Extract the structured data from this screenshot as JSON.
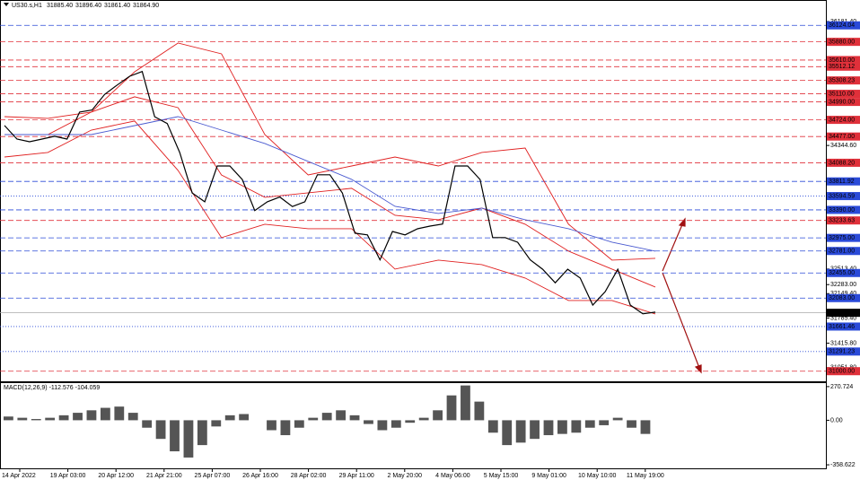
{
  "chart_data": [
    {
      "type": "line",
      "symbol": "US30.s,H1",
      "ohlc": [
        "31885.40",
        "31896.40",
        "31861.40",
        "31864.90"
      ],
      "ylim": [
        30850,
        36500
      ],
      "yticks": [
        {
          "value": 36181.4,
          "label": "36181.40"
        },
        {
          "value": 34344.6,
          "label": "34344.60"
        },
        {
          "value": 32513.4,
          "label": "32513.40"
        },
        {
          "value": 32283,
          "label": "32283.00"
        },
        {
          "value": 32149.4,
          "label": "32149.40"
        },
        {
          "value": 31785.4,
          "label": "31785.40"
        },
        {
          "value": 31415.8,
          "label": "31415.80"
        },
        {
          "value": 31051.8,
          "label": "31051.80"
        }
      ],
      "levels": [
        {
          "value": 36124.04,
          "label": "36124.04",
          "color": "#2a4ad8",
          "style": "dashed"
        },
        {
          "value": 35880,
          "label": "35880.00",
          "color": "#e0303a",
          "style": "dashed"
        },
        {
          "value": 35610,
          "label": "35610.00",
          "color": "#e0303a",
          "style": "dashed"
        },
        {
          "value": 35512.12,
          "label": "35512.12",
          "color": "#e0303a",
          "style": "dashed"
        },
        {
          "value": 35308.23,
          "label": "35308.23",
          "color": "#e0303a",
          "style": "dashed"
        },
        {
          "value": 35110,
          "label": "35110.00",
          "color": "#e0303a",
          "style": "dashed"
        },
        {
          "value": 34990,
          "label": "34990.00",
          "color": "#e0303a",
          "style": "dashed"
        },
        {
          "value": 34724,
          "label": "34724.00",
          "color": "#e0303a",
          "style": "dashed"
        },
        {
          "value": 34477,
          "label": "34477.00",
          "color": "#e0303a",
          "style": "dashed"
        },
        {
          "value": 34088.2,
          "label": "34088.20",
          "color": "#e0303a",
          "style": "dashed"
        },
        {
          "value": 33811.92,
          "label": "33811.92",
          "color": "#2a4ad8",
          "style": "dashed"
        },
        {
          "value": 33594.59,
          "label": "33594.59",
          "color": "#2a4ad8",
          "style": "dotted"
        },
        {
          "value": 33390,
          "label": "33390.00",
          "color": "#2a4ad8",
          "style": "dashed"
        },
        {
          "value": 33233.63,
          "label": "33233.63",
          "color": "#e0303a",
          "style": "dashed"
        },
        {
          "value": 32975,
          "label": "32975.00",
          "color": "#2a4ad8",
          "style": "dashed"
        },
        {
          "value": 32781,
          "label": "32781.00",
          "color": "#2a4ad8",
          "style": "dashed"
        },
        {
          "value": 32455,
          "label": "32455.00",
          "color": "#2a4ad8",
          "style": "dashed"
        },
        {
          "value": 32083,
          "label": "32083.00",
          "color": "#2a4ad8",
          "style": "dashed"
        },
        {
          "value": 31864.9,
          "label": "31864.90",
          "color": "#000000",
          "style": "solid"
        },
        {
          "value": 31661.46,
          "label": "31661.46",
          "color": "#2a4ad8",
          "style": "dotted"
        },
        {
          "value": 31291.23,
          "label": "31291.23",
          "color": "#2a4ad8",
          "style": "dotted"
        },
        {
          "value": 31000,
          "label": "31000.00",
          "color": "#e0303a",
          "style": "dashed"
        }
      ],
      "xticks": [
        "14 Apr 2022",
        "19 Apr 03:00",
        "20 Apr 12:00",
        "21 Apr 21:00",
        "25 Apr 07:00",
        "26 Apr 16:00",
        "28 Apr 02:00",
        "29 Apr 11:00",
        "2 May 20:00",
        "4 May 06:00",
        "5 May 15:00",
        "9 May 01:00",
        "10 May 10:00",
        "11 May 19:00"
      ],
      "series": [
        {
          "color": "#e02020",
          "values": [
            34772,
            34746,
            34839,
            35437,
            35862,
            35703,
            34506,
            33908,
            34041,
            34174,
            34041,
            34241,
            34307,
            33178,
            32646,
            32673
          ]
        },
        {
          "color": "#e02020",
          "values": [
            34506,
            34506,
            34839,
            35065,
            34905,
            33908,
            33576,
            33643,
            33709,
            33310,
            33244,
            33417,
            33178,
            32779,
            32513,
            32247
          ]
        },
        {
          "color": "#e02020",
          "values": [
            34174,
            34241,
            34573,
            34706,
            33975,
            32978,
            33178,
            33111,
            33111,
            32513,
            32646,
            32579,
            32380,
            32048,
            32048,
            31848
          ]
        },
        {
          "color": "#4a5ad0",
          "values": [
            34506,
            34506,
            34506,
            34639,
            34772,
            34573,
            34374,
            34108,
            33842,
            33443,
            33337,
            33417,
            33244,
            33111,
            32912,
            32779
          ]
        },
        {
          "color": "#000000",
          "values": [
            34640,
            34440,
            34400,
            34440,
            34480,
            34440,
            34840,
            34870,
            35100,
            35240,
            35370,
            35440,
            34770,
            34670,
            34240,
            33640,
            33510,
            34040,
            34040,
            33840,
            33380,
            33510,
            33580,
            33440,
            33510,
            33910,
            33910,
            33640,
            33045,
            33020,
            32650,
            33070,
            33020,
            33110,
            33150,
            33180,
            34040,
            34040,
            33840,
            32980,
            32980,
            32910,
            32650,
            32510,
            32310,
            32510,
            32380,
            31980,
            32180,
            32510,
            31980,
            31850,
            31875
          ]
        }
      ]
    },
    {
      "type": "bar",
      "title": "MACD(12,26,9) -112.576 -104.059",
      "ylim": [
        -387,
        299
      ],
      "yticks": [
        {
          "value": 270.724,
          "label": "270.724"
        },
        {
          "value": 0,
          "label": "0.00"
        },
        {
          "value": -358.622,
          "label": "-358.622"
        }
      ],
      "color": "#555555",
      "values": [
        30,
        20,
        10,
        20,
        40,
        60,
        80,
        100,
        110,
        60,
        -60,
        -150,
        -250,
        -300,
        -200,
        -50,
        40,
        50,
        0,
        -80,
        -120,
        -60,
        20,
        60,
        80,
        40,
        -30,
        -80,
        -60,
        -20,
        20,
        80,
        200,
        280,
        150,
        -100,
        -200,
        -180,
        -150,
        -120,
        -110,
        -100,
        -60,
        -40,
        20,
        -60,
        -110
      ]
    }
  ]
}
